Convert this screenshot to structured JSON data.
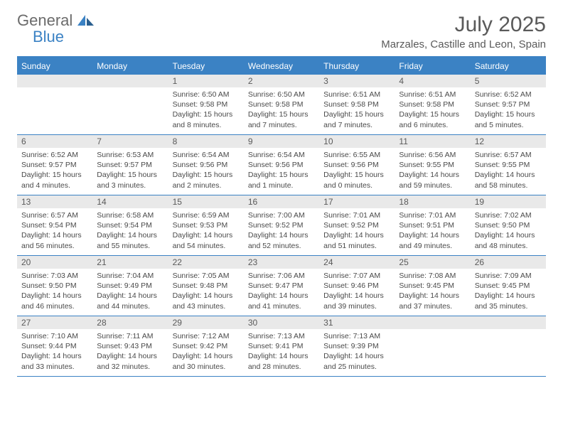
{
  "logo": {
    "general": "General",
    "blue": "Blue"
  },
  "title": "July 2025",
  "location": "Marzales, Castille and Leon, Spain",
  "day_labels": [
    "Sunday",
    "Monday",
    "Tuesday",
    "Wednesday",
    "Thursday",
    "Friday",
    "Saturday"
  ],
  "colors": {
    "header_bg": "#3b82c4",
    "daynum_bg": "#e9e9e9",
    "text_muted": "#5a5a5a",
    "text_body": "#4a4a4a"
  },
  "weeks": [
    [
      null,
      null,
      {
        "n": "1",
        "sr": "Sunrise: 6:50 AM",
        "ss": "Sunset: 9:58 PM",
        "dl": "Daylight: 15 hours and 8 minutes."
      },
      {
        "n": "2",
        "sr": "Sunrise: 6:50 AM",
        "ss": "Sunset: 9:58 PM",
        "dl": "Daylight: 15 hours and 7 minutes."
      },
      {
        "n": "3",
        "sr": "Sunrise: 6:51 AM",
        "ss": "Sunset: 9:58 PM",
        "dl": "Daylight: 15 hours and 7 minutes."
      },
      {
        "n": "4",
        "sr": "Sunrise: 6:51 AM",
        "ss": "Sunset: 9:58 PM",
        "dl": "Daylight: 15 hours and 6 minutes."
      },
      {
        "n": "5",
        "sr": "Sunrise: 6:52 AM",
        "ss": "Sunset: 9:57 PM",
        "dl": "Daylight: 15 hours and 5 minutes."
      }
    ],
    [
      {
        "n": "6",
        "sr": "Sunrise: 6:52 AM",
        "ss": "Sunset: 9:57 PM",
        "dl": "Daylight: 15 hours and 4 minutes."
      },
      {
        "n": "7",
        "sr": "Sunrise: 6:53 AM",
        "ss": "Sunset: 9:57 PM",
        "dl": "Daylight: 15 hours and 3 minutes."
      },
      {
        "n": "8",
        "sr": "Sunrise: 6:54 AM",
        "ss": "Sunset: 9:56 PM",
        "dl": "Daylight: 15 hours and 2 minutes."
      },
      {
        "n": "9",
        "sr": "Sunrise: 6:54 AM",
        "ss": "Sunset: 9:56 PM",
        "dl": "Daylight: 15 hours and 1 minute."
      },
      {
        "n": "10",
        "sr": "Sunrise: 6:55 AM",
        "ss": "Sunset: 9:56 PM",
        "dl": "Daylight: 15 hours and 0 minutes."
      },
      {
        "n": "11",
        "sr": "Sunrise: 6:56 AM",
        "ss": "Sunset: 9:55 PM",
        "dl": "Daylight: 14 hours and 59 minutes."
      },
      {
        "n": "12",
        "sr": "Sunrise: 6:57 AM",
        "ss": "Sunset: 9:55 PM",
        "dl": "Daylight: 14 hours and 58 minutes."
      }
    ],
    [
      {
        "n": "13",
        "sr": "Sunrise: 6:57 AM",
        "ss": "Sunset: 9:54 PM",
        "dl": "Daylight: 14 hours and 56 minutes."
      },
      {
        "n": "14",
        "sr": "Sunrise: 6:58 AM",
        "ss": "Sunset: 9:54 PM",
        "dl": "Daylight: 14 hours and 55 minutes."
      },
      {
        "n": "15",
        "sr": "Sunrise: 6:59 AM",
        "ss": "Sunset: 9:53 PM",
        "dl": "Daylight: 14 hours and 54 minutes."
      },
      {
        "n": "16",
        "sr": "Sunrise: 7:00 AM",
        "ss": "Sunset: 9:52 PM",
        "dl": "Daylight: 14 hours and 52 minutes."
      },
      {
        "n": "17",
        "sr": "Sunrise: 7:01 AM",
        "ss": "Sunset: 9:52 PM",
        "dl": "Daylight: 14 hours and 51 minutes."
      },
      {
        "n": "18",
        "sr": "Sunrise: 7:01 AM",
        "ss": "Sunset: 9:51 PM",
        "dl": "Daylight: 14 hours and 49 minutes."
      },
      {
        "n": "19",
        "sr": "Sunrise: 7:02 AM",
        "ss": "Sunset: 9:50 PM",
        "dl": "Daylight: 14 hours and 48 minutes."
      }
    ],
    [
      {
        "n": "20",
        "sr": "Sunrise: 7:03 AM",
        "ss": "Sunset: 9:50 PM",
        "dl": "Daylight: 14 hours and 46 minutes."
      },
      {
        "n": "21",
        "sr": "Sunrise: 7:04 AM",
        "ss": "Sunset: 9:49 PM",
        "dl": "Daylight: 14 hours and 44 minutes."
      },
      {
        "n": "22",
        "sr": "Sunrise: 7:05 AM",
        "ss": "Sunset: 9:48 PM",
        "dl": "Daylight: 14 hours and 43 minutes."
      },
      {
        "n": "23",
        "sr": "Sunrise: 7:06 AM",
        "ss": "Sunset: 9:47 PM",
        "dl": "Daylight: 14 hours and 41 minutes."
      },
      {
        "n": "24",
        "sr": "Sunrise: 7:07 AM",
        "ss": "Sunset: 9:46 PM",
        "dl": "Daylight: 14 hours and 39 minutes."
      },
      {
        "n": "25",
        "sr": "Sunrise: 7:08 AM",
        "ss": "Sunset: 9:45 PM",
        "dl": "Daylight: 14 hours and 37 minutes."
      },
      {
        "n": "26",
        "sr": "Sunrise: 7:09 AM",
        "ss": "Sunset: 9:45 PM",
        "dl": "Daylight: 14 hours and 35 minutes."
      }
    ],
    [
      {
        "n": "27",
        "sr": "Sunrise: 7:10 AM",
        "ss": "Sunset: 9:44 PM",
        "dl": "Daylight: 14 hours and 33 minutes."
      },
      {
        "n": "28",
        "sr": "Sunrise: 7:11 AM",
        "ss": "Sunset: 9:43 PM",
        "dl": "Daylight: 14 hours and 32 minutes."
      },
      {
        "n": "29",
        "sr": "Sunrise: 7:12 AM",
        "ss": "Sunset: 9:42 PM",
        "dl": "Daylight: 14 hours and 30 minutes."
      },
      {
        "n": "30",
        "sr": "Sunrise: 7:13 AM",
        "ss": "Sunset: 9:41 PM",
        "dl": "Daylight: 14 hours and 28 minutes."
      },
      {
        "n": "31",
        "sr": "Sunrise: 7:13 AM",
        "ss": "Sunset: 9:39 PM",
        "dl": "Daylight: 14 hours and 25 minutes."
      },
      null,
      null
    ]
  ]
}
